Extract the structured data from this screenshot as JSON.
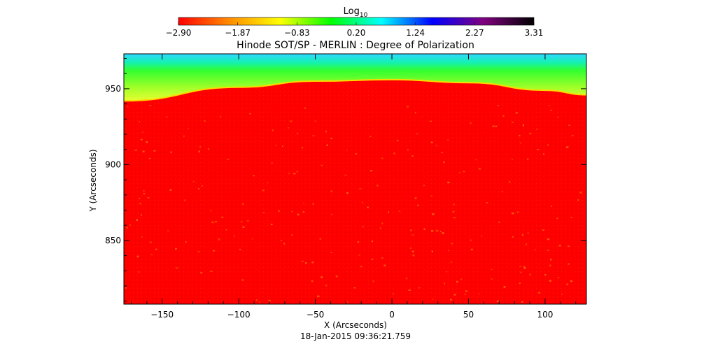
{
  "chart_data": {
    "type": "heatmap",
    "title": "Hinode SOT/SP - MERLIN : Degree of Polarization",
    "colorbar": {
      "label_base": "Log",
      "label_sub": "10",
      "range": [
        -2.9,
        3.31
      ],
      "tick_labels": [
        "−2.90",
        "−1.87",
        "−0.83",
        "0.20",
        "1.24",
        "2.27",
        "3.31"
      ],
      "colormap": [
        "#ff0000",
        "#ff8c00",
        "#ffff00",
        "#00ff00",
        "#00ffff",
        "#0000ff",
        "#800080",
        "#000000"
      ]
    },
    "xlabel": "X (Arcseconds)",
    "ylabel": "Y (Arcseconds)",
    "xlim": [
      -175,
      127
    ],
    "ylim": [
      808,
      973
    ],
    "x_ticks": [
      -150,
      -100,
      -50,
      0,
      50,
      100
    ],
    "x_tick_labels": [
      "−150",
      "−100",
      "−50",
      "0",
      "50",
      "100"
    ],
    "y_ticks": [
      850,
      900,
      950
    ],
    "y_tick_labels": [
      "850",
      "900",
      "950"
    ],
    "limb_y": [
      {
        "x": -175,
        "y": 942
      },
      {
        "x": -100,
        "y": 951
      },
      {
        "x": -50,
        "y": 955
      },
      {
        "x": 0,
        "y": 956
      },
      {
        "x": 50,
        "y": 954
      },
      {
        "x": 100,
        "y": 949
      },
      {
        "x": 127,
        "y": 946
      }
    ],
    "footer": "18-Jan-2015 09:36:21.759"
  }
}
